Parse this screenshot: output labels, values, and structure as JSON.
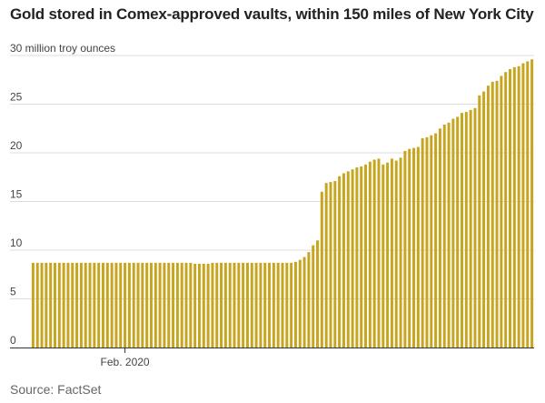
{
  "chart_data": {
    "type": "bar",
    "title": "Gold stored in Comex-approved vaults, within 150 miles of New York City",
    "ylabel": "30 million troy ounces",
    "ylim": [
      0,
      30
    ],
    "yticks": [
      {
        "value": 30,
        "label": "30 million troy ounces"
      },
      {
        "value": 25,
        "label": "25"
      },
      {
        "value": 20,
        "label": "20"
      },
      {
        "value": 15,
        "label": "15"
      },
      {
        "value": 10,
        "label": "10"
      },
      {
        "value": 5,
        "label": "5"
      },
      {
        "value": 0,
        "label": "0"
      }
    ],
    "x_tick": {
      "label": "Feb. 2020",
      "index": 21
    },
    "series": [
      {
        "name": "Gold stored",
        "color": "#c8a51f",
        "values": [
          8.7,
          8.7,
          8.7,
          8.7,
          8.7,
          8.7,
          8.7,
          8.7,
          8.7,
          8.7,
          8.7,
          8.7,
          8.7,
          8.7,
          8.7,
          8.7,
          8.7,
          8.7,
          8.7,
          8.7,
          8.7,
          8.7,
          8.7,
          8.7,
          8.7,
          8.7,
          8.7,
          8.7,
          8.7,
          8.7,
          8.7,
          8.7,
          8.7,
          8.7,
          8.7,
          8.7,
          8.7,
          8.6,
          8.6,
          8.6,
          8.6,
          8.7,
          8.7,
          8.7,
          8.7,
          8.7,
          8.7,
          8.7,
          8.7,
          8.7,
          8.7,
          8.7,
          8.7,
          8.7,
          8.7,
          8.7,
          8.7,
          8.7,
          8.7,
          8.7,
          8.8,
          9.0,
          9.3,
          9.8,
          10.5,
          11.0,
          16.0,
          16.9,
          17.0,
          17.1,
          17.6,
          17.9,
          18.1,
          18.3,
          18.5,
          18.6,
          18.8,
          19.1,
          19.3,
          19.4,
          18.8,
          19.0,
          19.4,
          19.2,
          19.5,
          20.2,
          20.4,
          20.5,
          20.6,
          21.5,
          21.6,
          21.8,
          22.0,
          22.5,
          22.9,
          23.1,
          23.5,
          23.7,
          24.1,
          24.2,
          24.4,
          24.6,
          25.9,
          26.3,
          26.9,
          27.3,
          27.4,
          27.9,
          28.3,
          28.6,
          28.8,
          28.9,
          29.2,
          29.4,
          29.6
        ]
      }
    ]
  },
  "footer": {
    "source": "Source: FactSet"
  }
}
